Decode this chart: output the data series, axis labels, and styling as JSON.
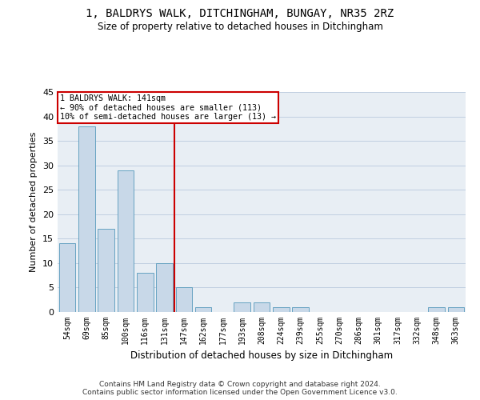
{
  "title_line1": "1, BALDRYS WALK, DITCHINGHAM, BUNGAY, NR35 2RZ",
  "title_line2": "Size of property relative to detached houses in Ditchingham",
  "xlabel": "Distribution of detached houses by size in Ditchingham",
  "ylabel": "Number of detached properties",
  "categories": [
    "54sqm",
    "69sqm",
    "85sqm",
    "100sqm",
    "116sqm",
    "131sqm",
    "147sqm",
    "162sqm",
    "177sqm",
    "193sqm",
    "208sqm",
    "224sqm",
    "239sqm",
    "255sqm",
    "270sqm",
    "286sqm",
    "301sqm",
    "317sqm",
    "332sqm",
    "348sqm",
    "363sqm"
  ],
  "values": [
    14,
    38,
    17,
    29,
    8,
    10,
    5,
    1,
    0,
    2,
    2,
    1,
    1,
    0,
    0,
    0,
    0,
    0,
    0,
    1,
    1
  ],
  "bar_color": "#c8d8e8",
  "bar_edge_color": "#5599bb",
  "subject_label": "1 BALDRYS WALK: 141sqm",
  "annotation_line1": "← 90% of detached houses are smaller (113)",
  "annotation_line2": "10% of semi-detached houses are larger (13) →",
  "vline_color": "#cc0000",
  "annotation_box_color": "#cc0000",
  "ylim": [
    0,
    45
  ],
  "yticks": [
    0,
    5,
    10,
    15,
    20,
    25,
    30,
    35,
    40,
    45
  ],
  "grid_color": "#c0cfe0",
  "background_color": "#e8eef4",
  "footer_line1": "Contains HM Land Registry data © Crown copyright and database right 2024.",
  "footer_line2": "Contains public sector information licensed under the Open Government Licence v3.0."
}
